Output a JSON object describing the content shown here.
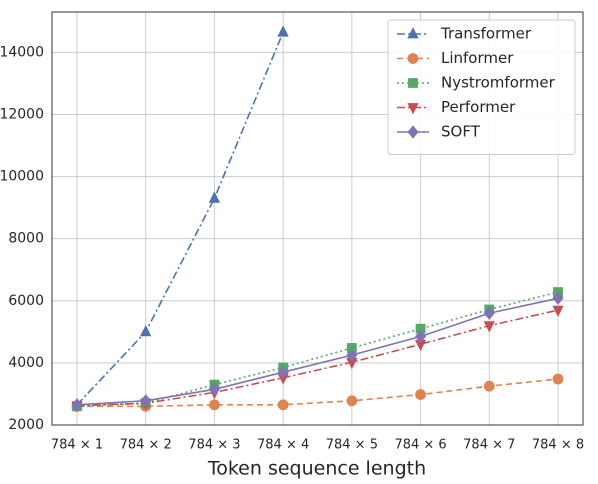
{
  "chart_data": {
    "type": "line",
    "xlabel": "Token sequence length",
    "categories": [
      "784 × 1",
      "784 × 2",
      "784 × 3",
      "784 × 4",
      "784 × 5",
      "784 × 6",
      "784 × 7",
      "784 × 8"
    ],
    "series": [
      {
        "name": "Transformer",
        "color": "#4c72b0",
        "marker": "^",
        "linestyle": "-.",
        "values": [
          2650,
          5000,
          9300,
          14650,
          null,
          null,
          null,
          null
        ]
      },
      {
        "name": "Linformer",
        "color": "#dd8452",
        "marker": "o",
        "linestyle": "--",
        "values": [
          2600,
          2600,
          2650,
          2650,
          2780,
          2980,
          3250,
          3480
        ]
      },
      {
        "name": "Nystromformer",
        "color": "#55a868",
        "marker": "s",
        "linestyle": ":",
        "values": [
          2600,
          2700,
          3300,
          3850,
          4480,
          5100,
          5720,
          6280
        ]
      },
      {
        "name": "Performer",
        "color": "#c44e52",
        "marker": "v",
        "linestyle": "-.",
        "values": [
          2620,
          2700,
          3050,
          3520,
          4020,
          4600,
          5200,
          5700
        ]
      },
      {
        "name": "SOFT",
        "color": "#8172b3",
        "marker": "D",
        "linestyle": "-",
        "values": [
          2650,
          2780,
          3150,
          3700,
          4250,
          4850,
          5600,
          6080
        ]
      }
    ],
    "ylim": [
      2000,
      15300
    ],
    "yticks": [
      2000,
      4000,
      6000,
      8000,
      10000,
      12000,
      14000
    ],
    "grid": true,
    "legend": "upper right"
  }
}
